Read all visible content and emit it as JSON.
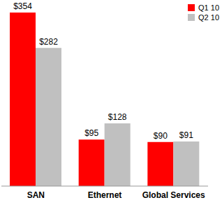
{
  "chart_data": {
    "type": "bar",
    "categories": [
      "SAN",
      "Ethernet",
      "Global Services"
    ],
    "series": [
      {
        "name": "Q1 10",
        "color": "#ff0000",
        "values": [
          354,
          95,
          90
        ],
        "value_labels": [
          "$354",
          "$95",
          "$90"
        ]
      },
      {
        "name": "Q2 10",
        "color": "#c0c0c0",
        "values": [
          282,
          128,
          91
        ],
        "value_labels": [
          "$282",
          "$128",
          "$91"
        ]
      }
    ],
    "ylim": [
      0,
      354
    ],
    "legend": "upper right",
    "data_labels": true,
    "tick_labels": "x"
  }
}
